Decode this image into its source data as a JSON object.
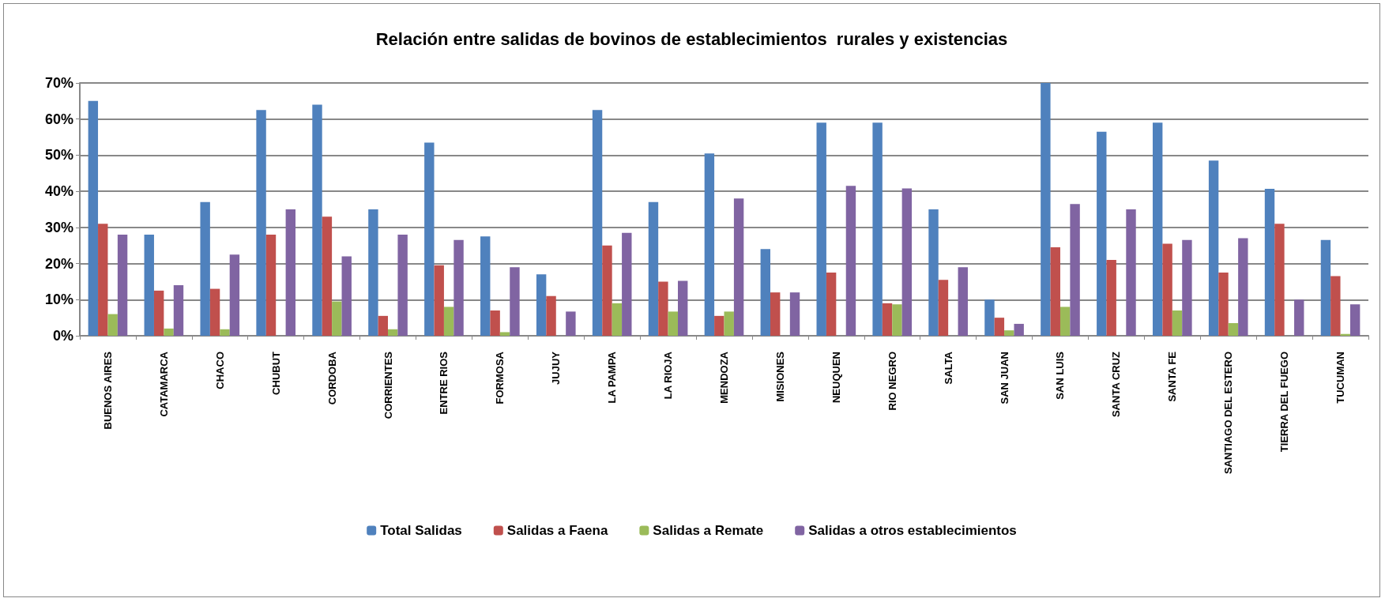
{
  "chart_data": {
    "type": "bar",
    "title": "Relación entre salidas de bovinos de establecimientos  rurales y existencias",
    "categories": [
      "BUENOS AIRES",
      "CATAMARCA",
      "CHACO",
      "CHUBUT",
      "CORDOBA",
      "CORRIENTES",
      "ENTRE RIOS",
      "FORMOSA",
      "JUJUY",
      "LA PAMPA",
      "LA RIOJA",
      "MENDOZA",
      "MISIONES",
      "NEUQUEN",
      "RIO NEGRO",
      "SALTA",
      "SAN JUAN",
      "SAN LUIS",
      "SANTA CRUZ",
      "SANTA FE",
      "SANTIAGO DEL ESTERO",
      "TIERRA DEL FUEGO",
      "TUCUMAN"
    ],
    "series": [
      {
        "name": "Total Salidas",
        "color": "#4f81bd",
        "values": [
          65,
          28,
          37,
          62.5,
          64,
          35,
          53.5,
          27.5,
          17,
          62.5,
          37,
          50.5,
          24,
          59,
          59,
          35,
          10,
          70,
          56.5,
          59,
          48.5,
          40.7,
          26.5
        ]
      },
      {
        "name": "Salidas a Faena",
        "color": "#c0504d",
        "values": [
          31,
          12.5,
          13,
          28,
          33,
          5.5,
          19.5,
          7,
          11,
          25,
          15,
          5.5,
          12,
          17.5,
          9,
          15.5,
          5,
          24.5,
          21,
          25.5,
          17.5,
          31,
          16.5
        ]
      },
      {
        "name": "Salidas a Remate",
        "color": "#9bbb59",
        "values": [
          6,
          2,
          1.8,
          0,
          9.5,
          1.8,
          8,
          1,
          0,
          9,
          6.7,
          6.7,
          0,
          0,
          8.7,
          0,
          1.5,
          8,
          0,
          7,
          3.5,
          0,
          0.5
        ]
      },
      {
        "name": "Salidas a otros establecimientos",
        "color": "#8064a2",
        "values": [
          28,
          14,
          22.5,
          35,
          22,
          28,
          26.5,
          19,
          6.7,
          28.5,
          15.2,
          38,
          12,
          41.5,
          40.8,
          19,
          3.3,
          36.5,
          35,
          26.5,
          27,
          10,
          8.7
        ]
      }
    ],
    "ylim": [
      0,
      70
    ],
    "yticks": [
      {
        "value": 0,
        "label": "0%"
      },
      {
        "value": 10,
        "label": "10%"
      },
      {
        "value": 20,
        "label": "20%"
      },
      {
        "value": 30,
        "label": "30%"
      },
      {
        "value": 40,
        "label": "40%"
      },
      {
        "value": 50,
        "label": "50%"
      },
      {
        "value": 60,
        "label": "60%"
      },
      {
        "value": 70,
        "label": "70%"
      }
    ],
    "grid": "y",
    "legend": "bottom"
  }
}
